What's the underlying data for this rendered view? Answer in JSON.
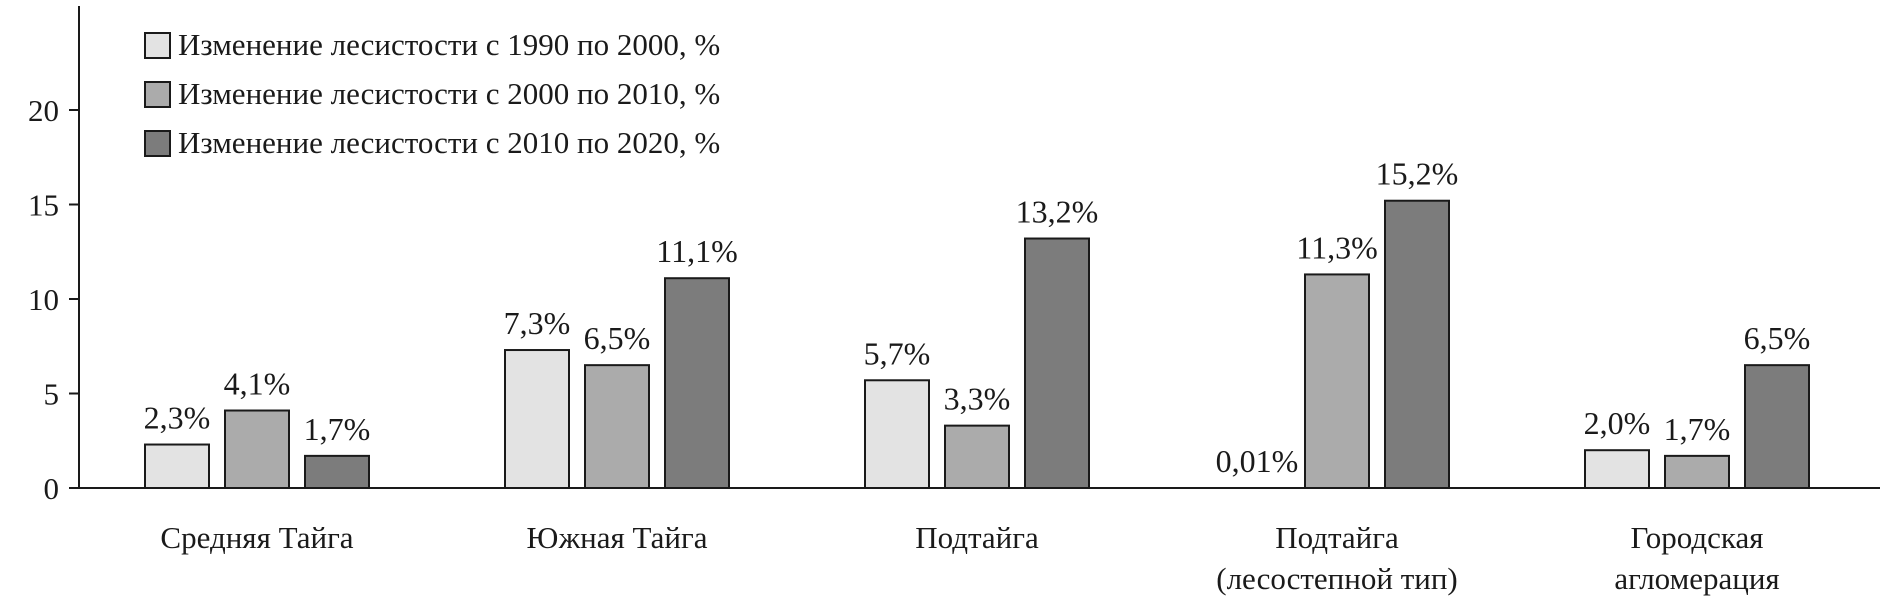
{
  "chart_data": {
    "type": "bar",
    "title": "",
    "xlabel": "",
    "ylabel": "",
    "ylim": [
      0,
      25
    ],
    "yticks": [
      0,
      5,
      10,
      15,
      20
    ],
    "grid": false,
    "legend_position": "top-left",
    "categories": [
      [
        "Средняя Тайга"
      ],
      [
        "Южная Тайга"
      ],
      [
        "Подтайга"
      ],
      [
        "Подтайга",
        "(лесостепной тип)"
      ],
      [
        "Городская",
        "агломерация"
      ]
    ],
    "series": [
      {
        "name": "Изменение лесистости с 1990 по 2000, %",
        "color": "#e3e3e3",
        "values": [
          2.3,
          7.3,
          5.7,
          0.01,
          2.0
        ],
        "labels": [
          "2,3%",
          "7,3%",
          "5,7%",
          "0,01%",
          "2,0%"
        ]
      },
      {
        "name": "Изменение лесистости с 2000 по 2010, %",
        "color": "#ababab",
        "values": [
          4.1,
          6.5,
          3.3,
          11.3,
          1.7
        ],
        "labels": [
          "4,1%",
          "6,5%",
          "3,3%",
          "11,3%",
          "1,7%"
        ]
      },
      {
        "name": "Изменение лесистости с 2010 по 2020, %",
        "color": "#7c7c7c",
        "values": [
          1.7,
          11.1,
          13.2,
          15.2,
          6.5
        ],
        "labels": [
          "1,7%",
          "11,1%",
          "13,2%",
          "15,2%",
          "6,5%"
        ]
      }
    ]
  }
}
